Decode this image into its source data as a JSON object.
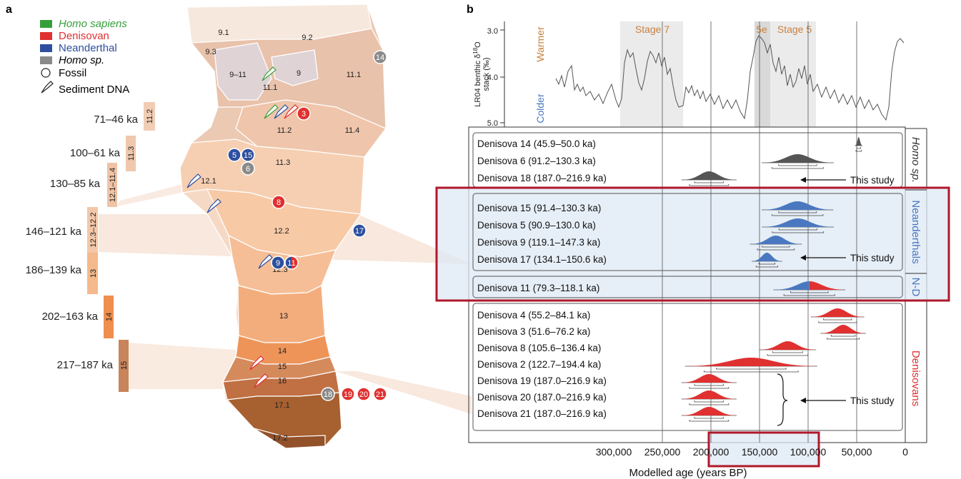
{
  "panel_a": {
    "label": "a",
    "legend": [
      {
        "label": "Homo sapiens",
        "color": "#35a03a"
      },
      {
        "label": "Denisovan",
        "color": "#e03030"
      },
      {
        "label": "Neanderthal",
        "color": "#2d4f9e"
      },
      {
        "label": "Homo sp.",
        "color": "#8a8a8a"
      },
      {
        "label": "Fossil"
      },
      {
        "label": "Sediment DNA"
      }
    ],
    "age_ranges": [
      {
        "range": "71–46 ka",
        "layer": "11.2"
      },
      {
        "range": "100–61 ka",
        "layer": "11.3"
      },
      {
        "range": "130–85 ka",
        "layer": "12.1–11.4"
      },
      {
        "range": "146–121 ka",
        "layer": "12.3–12.2"
      },
      {
        "range": "186–139 ka",
        "layer": "13"
      },
      {
        "range": "202–163 ka",
        "layer": "14"
      },
      {
        "range": "217–187 ka",
        "layer": "15"
      }
    ],
    "layers": [
      "9.1",
      "9.2",
      "9.3",
      "9–11",
      "9",
      "11.1",
      "11.1",
      "11.2",
      "11.4",
      "11.3",
      "12.1",
      "12.2",
      "12.3",
      "13",
      "14",
      "15",
      "16",
      "17.1",
      "17.2"
    ],
    "fossils": [
      {
        "id": "14",
        "group": "Homo sp."
      },
      {
        "id": "3",
        "group": "Denisovan"
      },
      {
        "id": "5",
        "group": "Neanderthal"
      },
      {
        "id": "15",
        "group": "Neanderthal"
      },
      {
        "id": "6",
        "group": "Homo sp."
      },
      {
        "id": "8",
        "group": "Denisovan"
      },
      {
        "id": "17",
        "group": "Neanderthal"
      },
      {
        "id": "9",
        "group": "Neanderthal"
      },
      {
        "id": "11",
        "group": "N-D"
      },
      {
        "id": "18",
        "group": "Homo sp."
      },
      {
        "id": "19",
        "group": "Denisovan"
      },
      {
        "id": "20",
        "group": "Denisovan"
      },
      {
        "id": "21",
        "group": "Denisovan"
      }
    ]
  },
  "panel_b": {
    "label": "b",
    "climate": {
      "ylabel_line1": "LR04 benthic δ",
      "ylabel_sup": "18",
      "ylabel_line1b": "O",
      "ylabel_line2": "stack (‰)",
      "warmer": "Warmer",
      "colder": "Colder",
      "yticks": [
        "3.0",
        "4.0",
        "5.0"
      ],
      "stages": [
        "Stage 7",
        "5e",
        "Stage 5"
      ]
    },
    "groups": [
      {
        "name": "Homo sp.",
        "color": "#555555"
      },
      {
        "name": "Neanderthals",
        "color": "#4a78c0"
      },
      {
        "name": "N-D",
        "color": "#4a78c0"
      },
      {
        "name": "Denisovans",
        "color": "#e03030"
      }
    ],
    "this_study": "This study",
    "rows": [
      {
        "label": "Denisova 14 (45.9–50.0 ka)",
        "group": "Homo sp.",
        "lo": 45.9,
        "hi": 50.0
      },
      {
        "label": "Denisova 6 (91.2–130.3 ka)",
        "group": "Homo sp.",
        "lo": 91.2,
        "hi": 130.3
      },
      {
        "label": "Denisova 18 (187.0–216.9 ka)",
        "group": "Homo sp.",
        "lo": 187.0,
        "hi": 216.9
      },
      {
        "label": "Denisova 15 (91.4–130.3 ka)",
        "group": "Neanderthals",
        "lo": 91.4,
        "hi": 130.3
      },
      {
        "label": "Denisova 5 (90.9–130.0 ka)",
        "group": "Neanderthals",
        "lo": 90.9,
        "hi": 130.0
      },
      {
        "label": "Denisova 9 (119.1–147.3 ka)",
        "group": "Neanderthals",
        "lo": 119.1,
        "hi": 147.3
      },
      {
        "label": "Denisova 17 (134.1–150.6 ka)",
        "group": "Neanderthals",
        "lo": 134.1,
        "hi": 150.6
      },
      {
        "label": "Denisova 11 (79.3–118.1 ka)",
        "group": "N-D",
        "lo": 79.3,
        "hi": 118.1
      },
      {
        "label": "Denisova 4 (55.2–84.1 ka)",
        "group": "Denisovans",
        "lo": 55.2,
        "hi": 84.1
      },
      {
        "label": "Denisova 3 (51.6–76.2 ka)",
        "group": "Denisovans",
        "lo": 51.6,
        "hi": 76.2
      },
      {
        "label": "Denisova 8 (105.6–136.4 ka)",
        "group": "Denisovans",
        "lo": 105.6,
        "hi": 136.4
      },
      {
        "label": "Denisova 2 (122.7–194.4 ka)",
        "group": "Denisovans",
        "lo": 122.7,
        "hi": 194.4
      },
      {
        "label": "Denisova 19 (187.0–216.9 ka)",
        "group": "Denisovans",
        "lo": 187.0,
        "hi": 216.9
      },
      {
        "label": "Denisova 20 (187.0–216.9 ka)",
        "group": "Denisovans",
        "lo": 187.0,
        "hi": 216.9
      },
      {
        "label": "Denisova 21 (187.0–216.9 ka)",
        "group": "Denisovans",
        "lo": 187.0,
        "hi": 216.9
      }
    ],
    "x_ticks": [
      "300,000",
      "250,000",
      "200,000",
      "150,000",
      "100,000",
      "50,000",
      "0"
    ],
    "x_tick_values": [
      300000,
      250000,
      200000,
      150000,
      100000,
      50000,
      0
    ],
    "xlabel": "Modelled age (years BP)"
  }
}
